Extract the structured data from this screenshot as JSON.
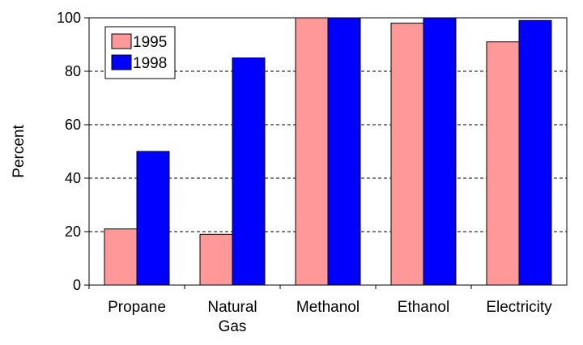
{
  "chart_data": {
    "type": "bar",
    "categories": [
      [
        "Propane"
      ],
      [
        "Natural",
        "Gas"
      ],
      [
        "Methanol"
      ],
      [
        "Ethanol"
      ],
      [
        "Electricity"
      ]
    ],
    "series": [
      {
        "name": "1995",
        "color": "#ff9999",
        "values": [
          21,
          19,
          100,
          98,
          91
        ]
      },
      {
        "name": "1998",
        "color": "#0000ff",
        "values": [
          50,
          85,
          100,
          100,
          99
        ]
      }
    ],
    "title": "",
    "xlabel": "",
    "ylabel": "Percent",
    "ylim": [
      0,
      100
    ],
    "yticks": [
      0,
      20,
      40,
      60,
      80,
      100
    ],
    "grid": "horizontal-dashed",
    "legend": "top-left-inside"
  }
}
